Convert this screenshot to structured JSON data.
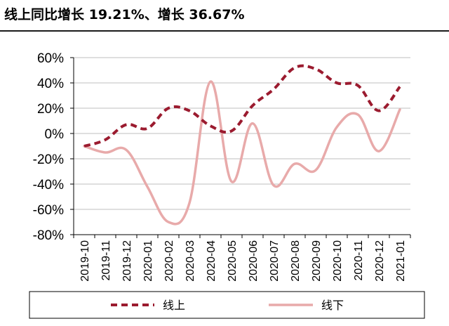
{
  "header": {
    "title": "线上同比增长 19.21%、增长 36.67%"
  },
  "chart_data": {
    "type": "line",
    "categories": [
      "2019-10",
      "2019-11",
      "2019-12",
      "2020-01",
      "2020-02",
      "2020-03",
      "2020-04",
      "2020-05",
      "2020-06",
      "2020-07",
      "2020-08",
      "2020-09",
      "2020-10",
      "2020-11",
      "2020-12",
      "2021-01"
    ],
    "series": [
      {
        "name": "线上",
        "style": "dashed",
        "color": "#9b1b2f",
        "values": [
          -10,
          -5,
          7,
          4,
          20,
          18,
          6,
          2,
          22,
          35,
          52,
          51,
          40,
          38,
          18,
          37
        ]
      },
      {
        "name": "线下",
        "style": "solid",
        "color": "#e8aaaa",
        "values": [
          -10,
          -15,
          -13,
          -42,
          -70,
          -55,
          41,
          -38,
          8,
          -41,
          -24,
          -29,
          5,
          15,
          -14,
          19
        ]
      }
    ],
    "ylim": [
      -80,
      60
    ],
    "yticks": [
      -80,
      -60,
      -40,
      -20,
      0,
      20,
      40,
      60
    ],
    "ytick_labels": [
      "-80%",
      "-60%",
      "-40%",
      "-20%",
      "0%",
      "20%",
      "40%",
      "60%"
    ],
    "grid": true,
    "legend": "bottom"
  }
}
